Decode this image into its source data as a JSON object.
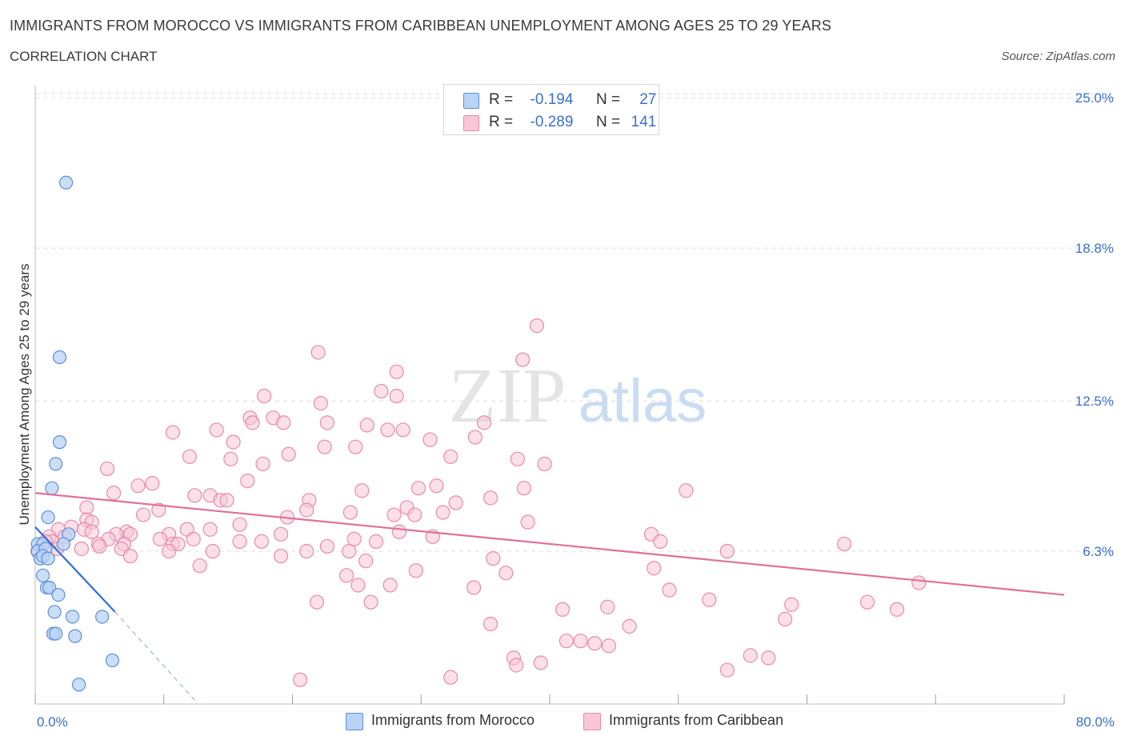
{
  "title": "IMMIGRANTS FROM MOROCCO VS IMMIGRANTS FROM CARIBBEAN UNEMPLOYMENT AMONG AGES 25 TO 29 YEARS",
  "subtitle": "CORRELATION CHART",
  "source": "Source: ZipAtlas.com",
  "watermark": {
    "zip": "ZIP",
    "atlas": "atlas"
  },
  "legend": {
    "r_label": "R =",
    "n_label": "N =",
    "morocco": {
      "r": "-0.194",
      "n": "27"
    },
    "caribbean": {
      "r": "-0.289",
      "n": "141"
    }
  },
  "colors": {
    "morocco_fill": "#b9d3f5",
    "morocco_stroke": "#5b8fd9",
    "morocco_line": "#2f6fd6",
    "caribbean_fill": "#f8c6d6",
    "caribbean_stroke": "#e98aa9",
    "caribbean_line": "#e0709a",
    "axis_text": "#3b6fd0",
    "grid": "#dcdcdc"
  },
  "chart_data": {
    "type": "scatter",
    "title": "IMMIGRANTS FROM MOROCCO VS IMMIGRANTS FROM CARIBBEAN UNEMPLOYMENT AMONG AGES 25 TO 29 YEARS",
    "xlabel": "",
    "ylabel": "Unemployment Among Ages 25 to 29 years",
    "xlim": [
      0,
      80
    ],
    "ylim": [
      0,
      25.5
    ],
    "x_tick_labels": [
      "0.0%",
      "80.0%"
    ],
    "y_ticks": [
      6.3,
      12.5,
      18.8,
      25.0
    ],
    "y_tick_labels": [
      "6.3%",
      "12.5%",
      "18.8%",
      "25.0%"
    ],
    "series": [
      {
        "name": "Immigrants from Morocco",
        "r": -0.194,
        "n": 27,
        "trend": {
          "x0": 0,
          "y0": 7.3,
          "x1": 6.2,
          "y1": 3.8,
          "dash_to_x": 12.5,
          "dash_to_y": 0.1
        },
        "points": [
          [
            2.4,
            21.5
          ],
          [
            1.9,
            14.3
          ],
          [
            1.9,
            10.8
          ],
          [
            1.6,
            9.9
          ],
          [
            1.3,
            8.9
          ],
          [
            1.0,
            7.7
          ],
          [
            2.6,
            7.0
          ],
          [
            2.2,
            6.6
          ],
          [
            0.2,
            6.6
          ],
          [
            0.6,
            6.6
          ],
          [
            0.2,
            6.3
          ],
          [
            0.8,
            6.4
          ],
          [
            0.4,
            6.0
          ],
          [
            0.6,
            6.1
          ],
          [
            1.0,
            6.0
          ],
          [
            0.6,
            5.3
          ],
          [
            0.9,
            4.8
          ],
          [
            1.1,
            4.8
          ],
          [
            1.8,
            4.5
          ],
          [
            1.5,
            3.8
          ],
          [
            2.9,
            3.6
          ],
          [
            5.2,
            3.6
          ],
          [
            1.4,
            2.9
          ],
          [
            1.6,
            2.9
          ],
          [
            3.1,
            2.8
          ],
          [
            6.0,
            1.8
          ],
          [
            3.4,
            0.8
          ]
        ]
      },
      {
        "name": "Immigrants from Caribbean",
        "r": -0.289,
        "n": 141,
        "trend": {
          "x0": 0,
          "y0": 8.7,
          "x1": 80,
          "y1": 4.5
        },
        "points": [
          [
            39.0,
            15.6
          ],
          [
            22.0,
            14.5
          ],
          [
            37.9,
            14.2
          ],
          [
            28.1,
            13.7
          ],
          [
            26.9,
            12.9
          ],
          [
            28.1,
            12.7
          ],
          [
            17.8,
            12.7
          ],
          [
            22.2,
            12.4
          ],
          [
            16.7,
            11.8
          ],
          [
            18.5,
            11.8
          ],
          [
            16.9,
            11.6
          ],
          [
            19.3,
            11.6
          ],
          [
            22.7,
            11.6
          ],
          [
            25.8,
            11.5
          ],
          [
            34.9,
            11.6
          ],
          [
            27.4,
            11.3
          ],
          [
            28.6,
            11.3
          ],
          [
            14.1,
            11.3
          ],
          [
            10.7,
            11.2
          ],
          [
            34.2,
            11.0
          ],
          [
            30.7,
            10.9
          ],
          [
            15.4,
            10.8
          ],
          [
            22.5,
            10.6
          ],
          [
            24.9,
            10.6
          ],
          [
            19.7,
            10.3
          ],
          [
            12.0,
            10.2
          ],
          [
            32.3,
            10.2
          ],
          [
            37.5,
            10.1
          ],
          [
            15.2,
            10.1
          ],
          [
            17.7,
            9.9
          ],
          [
            39.6,
            9.9
          ],
          [
            5.6,
            9.7
          ],
          [
            9.1,
            9.1
          ],
          [
            8.0,
            9.0
          ],
          [
            16.5,
            9.2
          ],
          [
            29.8,
            8.9
          ],
          [
            31.2,
            9.0
          ],
          [
            25.4,
            8.8
          ],
          [
            38.0,
            8.9
          ],
          [
            50.6,
            8.8
          ],
          [
            6.1,
            8.7
          ],
          [
            12.4,
            8.6
          ],
          [
            13.6,
            8.6
          ],
          [
            14.4,
            8.4
          ],
          [
            14.9,
            8.4
          ],
          [
            21.3,
            8.4
          ],
          [
            32.7,
            8.3
          ],
          [
            35.4,
            8.5
          ],
          [
            4.0,
            8.1
          ],
          [
            9.6,
            8.0
          ],
          [
            21.1,
            8.0
          ],
          [
            28.9,
            8.1
          ],
          [
            31.7,
            7.9
          ],
          [
            24.5,
            7.9
          ],
          [
            8.4,
            7.8
          ],
          [
            29.5,
            7.8
          ],
          [
            19.6,
            7.7
          ],
          [
            27.9,
            7.8
          ],
          [
            4.0,
            7.6
          ],
          [
            38.3,
            7.5
          ],
          [
            4.4,
            7.5
          ],
          [
            15.9,
            7.4
          ],
          [
            2.8,
            7.3
          ],
          [
            3.8,
            7.2
          ],
          [
            7.1,
            7.1
          ],
          [
            13.6,
            7.2
          ],
          [
            11.8,
            7.2
          ],
          [
            1.8,
            7.2
          ],
          [
            4.4,
            7.1
          ],
          [
            7.4,
            7.0
          ],
          [
            6.3,
            7.0
          ],
          [
            10.4,
            7.0
          ],
          [
            19.1,
            7.0
          ],
          [
            28.3,
            7.1
          ],
          [
            47.9,
            7.0
          ],
          [
            1.1,
            6.9
          ],
          [
            5.7,
            6.8
          ],
          [
            2.3,
            6.9
          ],
          [
            30.9,
            6.9
          ],
          [
            24.8,
            6.8
          ],
          [
            9.7,
            6.8
          ],
          [
            12.3,
            6.8
          ],
          [
            1.3,
            6.7
          ],
          [
            0.8,
            6.7
          ],
          [
            4.9,
            6.6
          ],
          [
            6.9,
            6.6
          ],
          [
            10.7,
            6.6
          ],
          [
            11.1,
            6.6
          ],
          [
            15.9,
            6.7
          ],
          [
            17.6,
            6.7
          ],
          [
            26.5,
            6.7
          ],
          [
            48.6,
            6.7
          ],
          [
            62.9,
            6.6
          ],
          [
            1.7,
            6.4
          ],
          [
            3.6,
            6.4
          ],
          [
            5.0,
            6.5
          ],
          [
            6.7,
            6.4
          ],
          [
            22.7,
            6.5
          ],
          [
            10.4,
            6.3
          ],
          [
            13.8,
            6.3
          ],
          [
            21.1,
            6.3
          ],
          [
            24.4,
            6.3
          ],
          [
            53.8,
            6.3
          ],
          [
            7.4,
            6.1
          ],
          [
            19.1,
            6.1
          ],
          [
            25.7,
            5.9
          ],
          [
            35.6,
            6.0
          ],
          [
            12.8,
            5.7
          ],
          [
            29.6,
            5.5
          ],
          [
            36.6,
            5.4
          ],
          [
            48.1,
            5.6
          ],
          [
            24.2,
            5.3
          ],
          [
            25.1,
            4.9
          ],
          [
            27.6,
            4.9
          ],
          [
            34.1,
            4.8
          ],
          [
            68.7,
            5.0
          ],
          [
            49.3,
            4.7
          ],
          [
            52.4,
            4.3
          ],
          [
            21.9,
            4.2
          ],
          [
            26.1,
            4.2
          ],
          [
            58.8,
            4.1
          ],
          [
            64.7,
            4.2
          ],
          [
            41.0,
            3.9
          ],
          [
            44.5,
            4.0
          ],
          [
            67.0,
            3.9
          ],
          [
            58.3,
            3.5
          ],
          [
            35.4,
            3.3
          ],
          [
            46.2,
            3.2
          ],
          [
            41.3,
            2.6
          ],
          [
            42.4,
            2.6
          ],
          [
            43.5,
            2.5
          ],
          [
            44.6,
            2.4
          ],
          [
            55.6,
            2.0
          ],
          [
            57.0,
            1.9
          ],
          [
            37.2,
            1.9
          ],
          [
            37.4,
            1.6
          ],
          [
            39.3,
            1.7
          ],
          [
            53.8,
            1.4
          ],
          [
            32.3,
            1.1
          ],
          [
            20.6,
            1.0
          ],
          [
            0.2,
            6.3
          ]
        ]
      }
    ]
  },
  "bottom_legend": {
    "morocco": "Immigrants from Morocco",
    "caribbean": "Immigrants from Caribbean"
  }
}
